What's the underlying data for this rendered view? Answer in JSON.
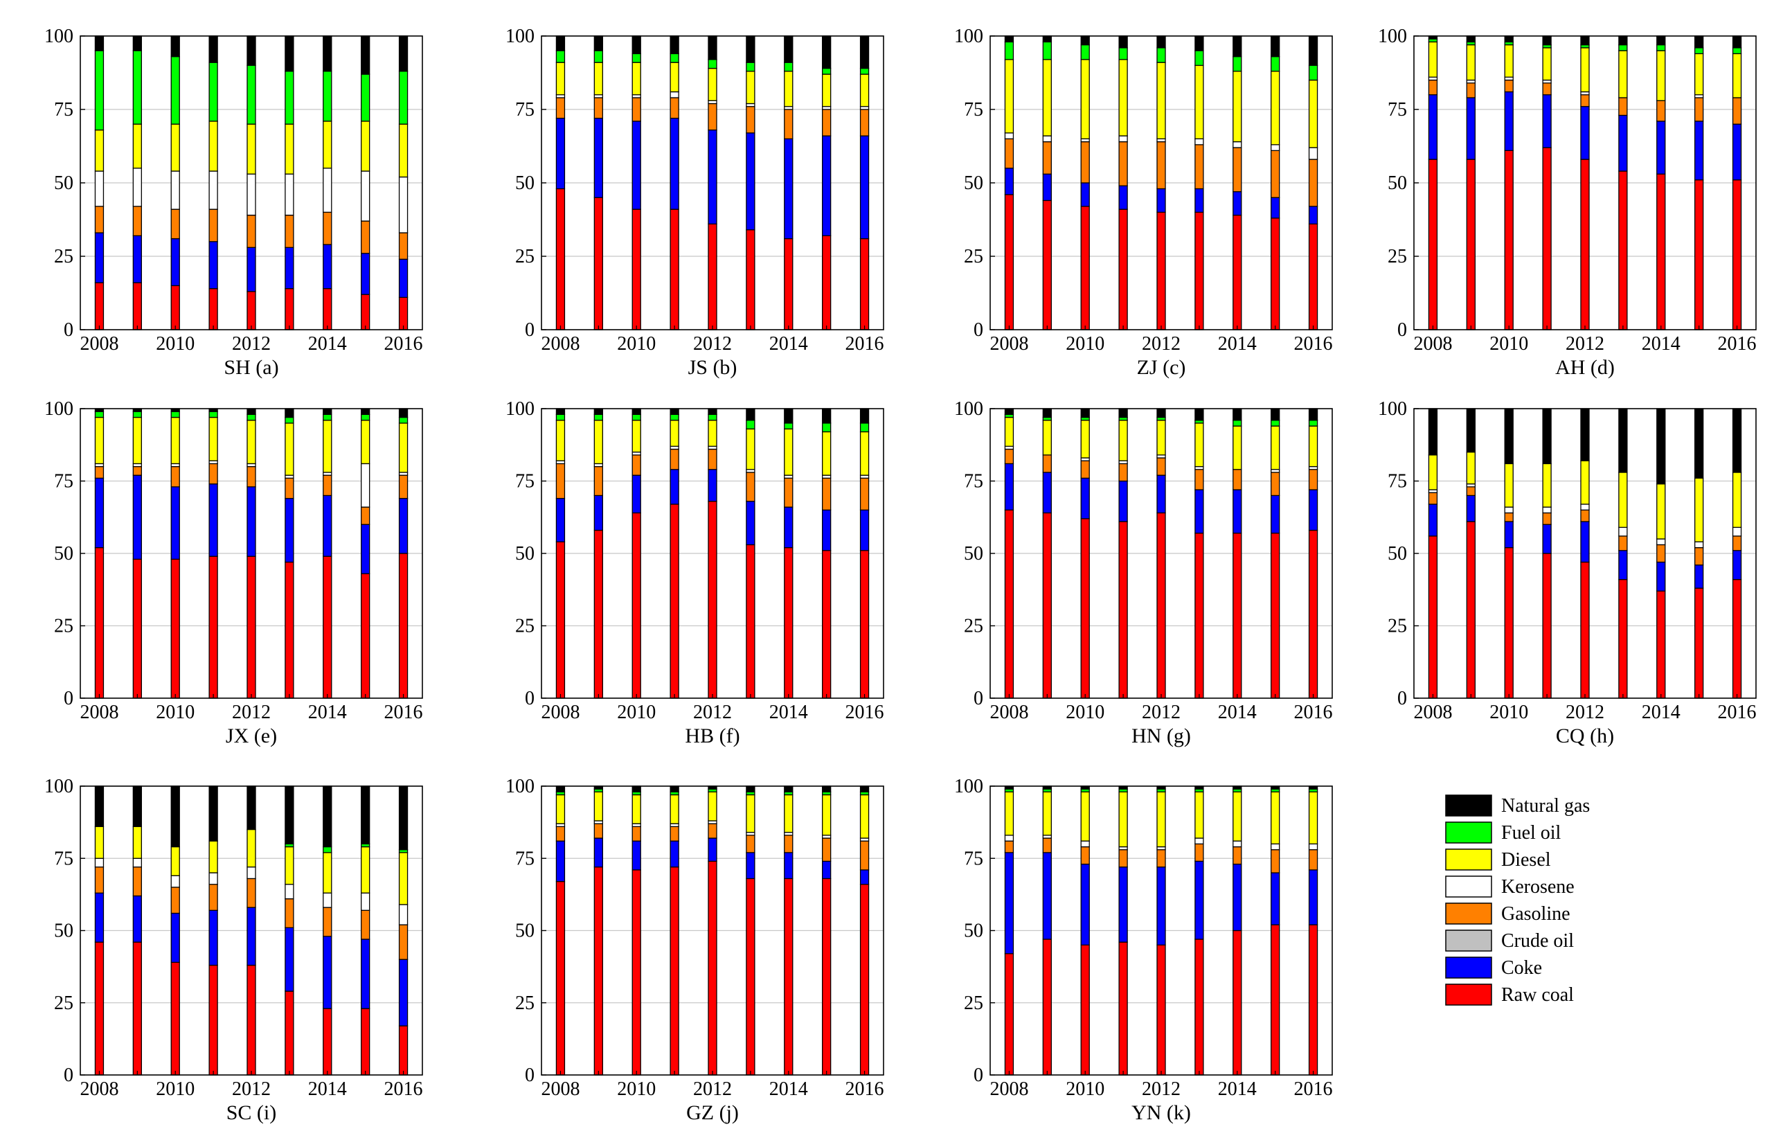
{
  "figure": {
    "series_order": [
      "Raw coal",
      "Coke",
      "Crude oil",
      "Gasoline",
      "Kerosene",
      "Diesel",
      "Fuel oil",
      "Natural gas"
    ],
    "legend_order": [
      "Natural gas",
      "Fuel oil",
      "Diesel",
      "Kerosene",
      "Gasoline",
      "Crude oil",
      "Coke",
      "Raw coal"
    ],
    "colors": {
      "Raw coal": "#ff0000",
      "Coke": "#0000ff",
      "Crude oil": "#c0c0c0",
      "Gasoline": "#ff8000",
      "Kerosene": "#ffffff",
      "Diesel": "#ffff00",
      "Fuel oil": "#00ff00",
      "Natural gas": "#000000"
    }
  },
  "chart_data": [
    {
      "type": "bar",
      "stacked": true,
      "title": "SH (a)",
      "years": [
        2008,
        2009,
        2010,
        2011,
        2012,
        2013,
        2014,
        2015,
        2016
      ],
      "x_tick_labels": [
        "2008",
        "2010",
        "2012",
        "2014",
        "2016"
      ],
      "y_ticks": [
        0,
        25,
        50,
        75,
        100
      ],
      "ylim": [
        0,
        100
      ],
      "cumulative": [
        [
          16,
          33,
          33,
          42,
          54,
          68,
          95,
          100
        ],
        [
          16,
          32,
          32,
          42,
          55,
          70,
          95,
          100
        ],
        [
          15,
          31,
          31,
          41,
          54,
          70,
          93,
          100
        ],
        [
          14,
          30,
          30,
          41,
          54,
          71,
          91,
          100
        ],
        [
          13,
          28,
          28,
          39,
          53,
          70,
          90,
          100
        ],
        [
          14,
          28,
          28,
          39,
          53,
          70,
          88,
          100
        ],
        [
          14,
          29,
          29,
          40,
          55,
          71,
          88,
          100
        ],
        [
          12,
          26,
          26,
          37,
          54,
          71,
          87,
          100
        ],
        [
          11,
          24,
          24,
          33,
          52,
          70,
          88,
          100
        ]
      ]
    },
    {
      "type": "bar",
      "stacked": true,
      "title": "JS (b)",
      "years": [
        2008,
        2009,
        2010,
        2011,
        2012,
        2013,
        2014,
        2015,
        2016
      ],
      "x_tick_labels": [
        "2008",
        "2010",
        "2012",
        "2014",
        "2016"
      ],
      "y_ticks": [
        0,
        25,
        50,
        75,
        100
      ],
      "ylim": [
        0,
        100
      ],
      "cumulative": [
        [
          48,
          72,
          72,
          79,
          80,
          91,
          95,
          100
        ],
        [
          45,
          72,
          72,
          79,
          80,
          91,
          95,
          100
        ],
        [
          41,
          71,
          71,
          79,
          80,
          91,
          94,
          100
        ],
        [
          41,
          72,
          72,
          79,
          81,
          91,
          94,
          100
        ],
        [
          36,
          68,
          68,
          77,
          78,
          89,
          92,
          100
        ],
        [
          34,
          67,
          67,
          76,
          77,
          88,
          91,
          100
        ],
        [
          31,
          65,
          65,
          75,
          76,
          88,
          91,
          100
        ],
        [
          32,
          66,
          66,
          75,
          76,
          87,
          89,
          100
        ],
        [
          31,
          66,
          66,
          75,
          76,
          87,
          89,
          100
        ]
      ]
    },
    {
      "type": "bar",
      "stacked": true,
      "title": "ZJ (c)",
      "years": [
        2008,
        2009,
        2010,
        2011,
        2012,
        2013,
        2014,
        2015,
        2016
      ],
      "x_tick_labels": [
        "2008",
        "2010",
        "2012",
        "2014",
        "2016"
      ],
      "y_ticks": [
        0,
        25,
        50,
        75,
        100
      ],
      "ylim": [
        0,
        100
      ],
      "cumulative": [
        [
          46,
          55,
          55,
          65,
          67,
          92,
          98,
          100
        ],
        [
          44,
          53,
          53,
          64,
          66,
          92,
          98,
          100
        ],
        [
          42,
          50,
          50,
          64,
          65,
          92,
          97,
          100
        ],
        [
          41,
          49,
          49,
          64,
          66,
          92,
          96,
          100
        ],
        [
          40,
          48,
          48,
          64,
          65,
          91,
          96,
          100
        ],
        [
          40,
          48,
          48,
          63,
          65,
          90,
          95,
          100
        ],
        [
          39,
          47,
          47,
          62,
          64,
          88,
          93,
          100
        ],
        [
          38,
          45,
          45,
          61,
          63,
          88,
          93,
          100
        ],
        [
          36,
          42,
          42,
          58,
          62,
          85,
          90,
          100
        ]
      ]
    },
    {
      "type": "bar",
      "stacked": true,
      "title": "AH (d)",
      "years": [
        2008,
        2009,
        2010,
        2011,
        2012,
        2013,
        2014,
        2015,
        2016
      ],
      "x_tick_labels": [
        "2008",
        "2010",
        "2012",
        "2014",
        "2016"
      ],
      "y_ticks": [
        0,
        25,
        50,
        75,
        100
      ],
      "ylim": [
        0,
        100
      ],
      "cumulative": [
        [
          58,
          80,
          80,
          85,
          86,
          98,
          99,
          100
        ],
        [
          58,
          79,
          79,
          84,
          85,
          97,
          98,
          100
        ],
        [
          61,
          81,
          81,
          85,
          86,
          97,
          98,
          100
        ],
        [
          62,
          80,
          80,
          84,
          85,
          96,
          97,
          100
        ],
        [
          58,
          76,
          76,
          80,
          81,
          96,
          97,
          100
        ],
        [
          54,
          73,
          73,
          79,
          79,
          95,
          97,
          100
        ],
        [
          53,
          71,
          71,
          78,
          78,
          95,
          97,
          100
        ],
        [
          51,
          71,
          71,
          79,
          80,
          94,
          96,
          100
        ],
        [
          51,
          70,
          70,
          79,
          79,
          94,
          96,
          100
        ]
      ]
    },
    {
      "type": "bar",
      "stacked": true,
      "title": "JX (e)",
      "years": [
        2008,
        2009,
        2010,
        2011,
        2012,
        2013,
        2014,
        2015,
        2016
      ],
      "x_tick_labels": [
        "2008",
        "2010",
        "2012",
        "2014",
        "2016"
      ],
      "y_ticks": [
        0,
        25,
        50,
        75,
        100
      ],
      "ylim": [
        0,
        100
      ],
      "cumulative": [
        [
          52,
          76,
          76,
          80,
          81,
          97,
          99,
          100
        ],
        [
          48,
          77,
          77,
          80,
          81,
          97,
          99,
          100
        ],
        [
          48,
          73,
          73,
          80,
          81,
          97,
          99,
          100
        ],
        [
          49,
          74,
          74,
          81,
          82,
          97,
          99,
          100
        ],
        [
          49,
          73,
          73,
          80,
          81,
          96,
          98,
          100
        ],
        [
          47,
          69,
          69,
          76,
          77,
          95,
          97,
          100
        ],
        [
          49,
          70,
          70,
          77,
          78,
          96,
          98,
          100
        ],
        [
          43,
          60,
          60,
          66,
          81,
          96,
          98,
          100
        ],
        [
          50,
          69,
          69,
          77,
          78,
          95,
          97,
          100
        ]
      ]
    },
    {
      "type": "bar",
      "stacked": true,
      "title": "HB (f)",
      "years": [
        2008,
        2009,
        2010,
        2011,
        2012,
        2013,
        2014,
        2015,
        2016
      ],
      "x_tick_labels": [
        "2008",
        "2010",
        "2012",
        "2014",
        "2016"
      ],
      "y_ticks": [
        0,
        25,
        50,
        75,
        100
      ],
      "ylim": [
        0,
        100
      ],
      "cumulative": [
        [
          54,
          69,
          69,
          81,
          82,
          96,
          98,
          100
        ],
        [
          58,
          70,
          70,
          80,
          81,
          96,
          98,
          100
        ],
        [
          64,
          77,
          77,
          84,
          85,
          96,
          98,
          100
        ],
        [
          67,
          79,
          79,
          86,
          87,
          96,
          98,
          100
        ],
        [
          68,
          79,
          79,
          86,
          87,
          96,
          98,
          100
        ],
        [
          53,
          68,
          68,
          78,
          79,
          93,
          96,
          100
        ],
        [
          52,
          66,
          66,
          76,
          77,
          93,
          95,
          100
        ],
        [
          51,
          65,
          65,
          76,
          77,
          92,
          95,
          100
        ],
        [
          51,
          65,
          65,
          76,
          77,
          92,
          95,
          100
        ]
      ]
    },
    {
      "type": "bar",
      "stacked": true,
      "title": "HN (g)",
      "years": [
        2008,
        2009,
        2010,
        2011,
        2012,
        2013,
        2014,
        2015,
        2016
      ],
      "x_tick_labels": [
        "2008",
        "2010",
        "2012",
        "2014",
        "2016"
      ],
      "y_ticks": [
        0,
        25,
        50,
        75,
        100
      ],
      "ylim": [
        0,
        100
      ],
      "cumulative": [
        [
          65,
          81,
          81,
          86,
          87,
          97,
          98,
          100
        ],
        [
          64,
          78,
          78,
          84,
          84,
          96,
          97,
          100
        ],
        [
          62,
          76,
          76,
          82,
          83,
          96,
          97,
          100
        ],
        [
          61,
          75,
          75,
          81,
          82,
          96,
          97,
          100
        ],
        [
          64,
          77,
          77,
          83,
          84,
          96,
          97,
          100
        ],
        [
          57,
          72,
          72,
          79,
          80,
          95,
          96,
          100
        ],
        [
          57,
          72,
          72,
          79,
          79,
          94,
          96,
          100
        ],
        [
          57,
          70,
          70,
          78,
          79,
          94,
          96,
          100
        ],
        [
          58,
          72,
          72,
          79,
          80,
          94,
          96,
          100
        ]
      ]
    },
    {
      "type": "bar",
      "stacked": true,
      "title": "CQ (h)",
      "years": [
        2008,
        2009,
        2010,
        2011,
        2012,
        2013,
        2014,
        2015,
        2016
      ],
      "x_tick_labels": [
        "2008",
        "2010",
        "2012",
        "2014",
        "2016"
      ],
      "y_ticks": [
        0,
        25,
        50,
        75,
        100
      ],
      "ylim": [
        0,
        100
      ],
      "cumulative": [
        [
          56,
          67,
          67,
          71,
          72,
          84,
          84,
          100
        ],
        [
          61,
          70,
          70,
          73,
          74,
          85,
          85,
          100
        ],
        [
          52,
          61,
          61,
          64,
          66,
          81,
          81,
          100
        ],
        [
          50,
          60,
          60,
          64,
          66,
          81,
          81,
          100
        ],
        [
          47,
          61,
          61,
          65,
          67,
          82,
          82,
          100
        ],
        [
          41,
          51,
          51,
          56,
          59,
          78,
          78,
          100
        ],
        [
          37,
          47,
          47,
          53,
          55,
          74,
          74,
          100
        ],
        [
          38,
          46,
          46,
          52,
          54,
          76,
          76,
          100
        ],
        [
          41,
          51,
          51,
          56,
          59,
          78,
          78,
          100
        ]
      ]
    },
    {
      "type": "bar",
      "stacked": true,
      "title": "SC (i)",
      "years": [
        2008,
        2009,
        2010,
        2011,
        2012,
        2013,
        2014,
        2015,
        2016
      ],
      "x_tick_labels": [
        "2008",
        "2010",
        "2012",
        "2014",
        "2016"
      ],
      "y_ticks": [
        0,
        25,
        50,
        75,
        100
      ],
      "ylim": [
        0,
        100
      ],
      "cumulative": [
        [
          46,
          63,
          63,
          72,
          75,
          86,
          86,
          100
        ],
        [
          46,
          62,
          62,
          72,
          75,
          86,
          86,
          100
        ],
        [
          39,
          56,
          56,
          65,
          69,
          79,
          79,
          100
        ],
        [
          38,
          57,
          57,
          66,
          70,
          81,
          81,
          100
        ],
        [
          38,
          58,
          58,
          68,
          72,
          85,
          85,
          100
        ],
        [
          29,
          51,
          51,
          61,
          66,
          79,
          80,
          100
        ],
        [
          23,
          48,
          48,
          58,
          63,
          77,
          79,
          100
        ],
        [
          23,
          47,
          47,
          57,
          63,
          79,
          80,
          100
        ],
        [
          17,
          40,
          40,
          52,
          59,
          77,
          78,
          100
        ]
      ]
    },
    {
      "type": "bar",
      "stacked": true,
      "title": "GZ (j)",
      "years": [
        2008,
        2009,
        2010,
        2011,
        2012,
        2013,
        2014,
        2015,
        2016
      ],
      "x_tick_labels": [
        "2008",
        "2010",
        "2012",
        "2014",
        "2016"
      ],
      "y_ticks": [
        0,
        25,
        50,
        75,
        100
      ],
      "ylim": [
        0,
        100
      ],
      "cumulative": [
        [
          67,
          81,
          81,
          86,
          87,
          97,
          98,
          100
        ],
        [
          72,
          82,
          82,
          87,
          88,
          98,
          99,
          100
        ],
        [
          71,
          81,
          81,
          86,
          87,
          97,
          98,
          100
        ],
        [
          72,
          81,
          81,
          86,
          87,
          97,
          98,
          100
        ],
        [
          74,
          82,
          82,
          87,
          88,
          98,
          99,
          100
        ],
        [
          68,
          77,
          77,
          83,
          84,
          97,
          98,
          100
        ],
        [
          68,
          77,
          77,
          83,
          84,
          97,
          98,
          100
        ],
        [
          68,
          74,
          74,
          82,
          83,
          97,
          98,
          100
        ],
        [
          66,
          71,
          71,
          81,
          82,
          97,
          98,
          100
        ]
      ]
    },
    {
      "type": "bar",
      "stacked": true,
      "title": "YN (k)",
      "years": [
        2008,
        2009,
        2010,
        2011,
        2012,
        2013,
        2014,
        2015,
        2016
      ],
      "x_tick_labels": [
        "2008",
        "2010",
        "2012",
        "2014",
        "2016"
      ],
      "y_ticks": [
        0,
        25,
        50,
        75,
        100
      ],
      "ylim": [
        0,
        100
      ],
      "cumulative": [
        [
          42,
          77,
          77,
          81,
          83,
          98,
          99,
          100
        ],
        [
          47,
          77,
          77,
          82,
          83,
          98,
          99,
          100
        ],
        [
          45,
          73,
          73,
          79,
          81,
          98,
          99,
          100
        ],
        [
          46,
          72,
          72,
          78,
          79,
          98,
          99,
          100
        ],
        [
          45,
          72,
          72,
          78,
          79,
          98,
          99,
          100
        ],
        [
          47,
          74,
          74,
          80,
          82,
          98,
          99,
          100
        ],
        [
          50,
          73,
          73,
          79,
          81,
          98,
          99,
          100
        ],
        [
          52,
          70,
          70,
          78,
          80,
          98,
          99,
          100
        ],
        [
          52,
          71,
          71,
          78,
          80,
          98,
          99,
          100
        ]
      ]
    }
  ]
}
